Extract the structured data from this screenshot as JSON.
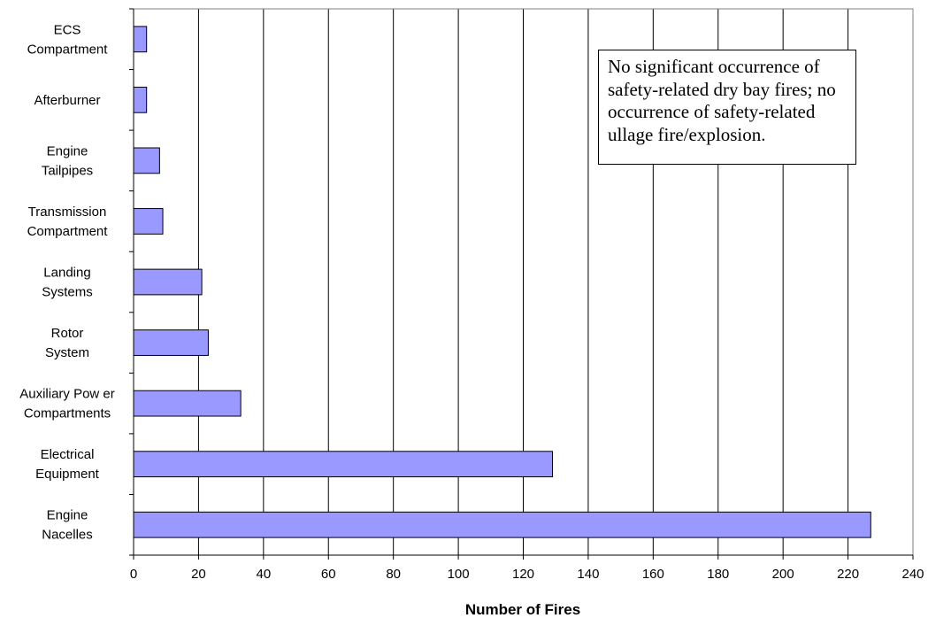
{
  "chart_data": {
    "type": "bar",
    "orientation": "horizontal",
    "title": "",
    "xlabel": "Number of Fires",
    "ylabel": "",
    "xlim": [
      0,
      240
    ],
    "xticks": [
      0,
      20,
      40,
      60,
      80,
      100,
      120,
      140,
      160,
      180,
      200,
      220,
      240
    ],
    "grid": "vertical",
    "legend": "none",
    "categories": [
      [
        "ECS",
        "Compartment"
      ],
      [
        "Afterburner"
      ],
      [
        "Engine",
        "Tailpipes"
      ],
      [
        "Transmission",
        "Compartment"
      ],
      [
        "Landing",
        "Systems"
      ],
      [
        "Rotor",
        "System"
      ],
      [
        "Auxiliary Pow er",
        "Compartments"
      ],
      [
        "Electrical",
        "Equipment"
      ],
      [
        "Engine",
        "Nacelles"
      ]
    ],
    "values": [
      4,
      4,
      8,
      9,
      21,
      23,
      33,
      129,
      227
    ],
    "bar_color": "#9999ff",
    "bar_edge_color": "#000000",
    "annotation": [
      "No significant occurrence of",
      "safety-related dry bay fires; no",
      "occurrence of safety-related",
      "ullage fire/explosion."
    ]
  }
}
